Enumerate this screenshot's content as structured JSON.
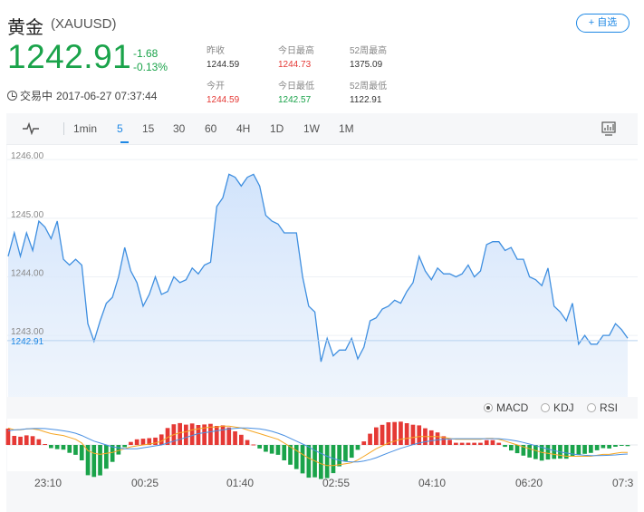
{
  "header": {
    "name": "黄金",
    "code": "(XAUUSD)",
    "watch_label": "+ 自选",
    "price": "1242.91",
    "change": "-1.68",
    "change_pct": "-0.13%",
    "status": "交易中",
    "datetime": "2017-06-27 07:37:44",
    "colors": {
      "up": "#e53935",
      "down": "#1aa34a",
      "accent": "#1e88e5"
    }
  },
  "stats": [
    {
      "label": "昨收",
      "value": "1244.59",
      "color": "black"
    },
    {
      "label": "今日最高",
      "value": "1244.73",
      "color": "red"
    },
    {
      "label": "52周最高",
      "value": "1375.09",
      "color": "black"
    },
    {
      "label": "今开",
      "value": "1244.59",
      "color": "red"
    },
    {
      "label": "今日最低",
      "value": "1242.57",
      "color": "green"
    },
    {
      "label": "52周最低",
      "value": "1122.91",
      "color": "black"
    }
  ],
  "toolbar": {
    "icons": {
      "chart_type": "pulse-icon",
      "display": "monitor-chart-icon"
    },
    "periods": [
      "1min",
      "5",
      "15",
      "30",
      "60",
      "4H",
      "1D",
      "1W",
      "1M"
    ],
    "active_period": "5"
  },
  "indicators": {
    "options": [
      "MACD",
      "KDJ",
      "RSI"
    ],
    "selected": "MACD"
  },
  "chart_data": {
    "type": "area",
    "title": "",
    "xlabel": "",
    "ylabel": "",
    "x_ticks": [
      "23:10",
      "00:25",
      "01:40",
      "02:55",
      "04:10",
      "06:20",
      "07:3"
    ],
    "y_ticks": [
      "1246.00",
      "1245.00",
      "1244.00",
      "1243.00"
    ],
    "ylim": [
      1241.95,
      1246.25
    ],
    "last_value_label": "1242.91",
    "series": [
      {
        "values": [
          1244.35,
          1244.75,
          1244.35,
          1244.75,
          1244.45,
          1244.95,
          1244.85,
          1244.65,
          1244.95,
          1244.3,
          1244.2,
          1244.3,
          1244.2,
          1243.2,
          1242.9,
          1243.25,
          1243.55,
          1243.65,
          1244.0,
          1244.5,
          1244.1,
          1243.9,
          1243.5,
          1243.7,
          1244.0,
          1243.7,
          1243.75,
          1244.0,
          1243.9,
          1243.95,
          1244.15,
          1244.05,
          1244.2,
          1244.25,
          1245.2,
          1245.35,
          1245.75,
          1245.7,
          1245.55,
          1245.7,
          1245.75,
          1245.55,
          1245.05,
          1244.95,
          1244.9,
          1244.75,
          1244.75,
          1244.75,
          1244.0,
          1243.5,
          1243.4,
          1242.55,
          1242.95,
          1242.65,
          1242.75,
          1242.75,
          1242.95,
          1242.6,
          1242.8,
          1243.25,
          1243.3,
          1243.45,
          1243.5,
          1243.6,
          1243.55,
          1243.75,
          1243.9,
          1244.35,
          1244.1,
          1243.95,
          1244.15,
          1244.05,
          1244.05,
          1244.0,
          1244.05,
          1244.2,
          1244.0,
          1244.1,
          1244.55,
          1244.6,
          1244.6,
          1244.45,
          1244.5,
          1244.3,
          1244.3,
          1244.0,
          1243.95,
          1243.85,
          1244.15,
          1243.5,
          1243.4,
          1243.25,
          1243.55,
          1242.85,
          1243.0,
          1242.85,
          1242.85,
          1243.0,
          1243.0,
          1243.2,
          1243.1,
          1242.95
        ]
      }
    ],
    "macd": {
      "dif": [
        0.9,
        0.8,
        0.8,
        0.85,
        0.85,
        0.8,
        0.7,
        0.6,
        0.55,
        0.5,
        0.4,
        0.3,
        0.1,
        -0.3,
        -0.45,
        -0.5,
        -0.45,
        -0.4,
        -0.3,
        -0.2,
        -0.1,
        -0.05,
        0.0,
        0.05,
        0.1,
        0.2,
        0.4,
        0.55,
        0.65,
        0.7,
        0.8,
        0.85,
        0.9,
        0.95,
        0.95,
        1.0,
        1.0,
        0.95,
        0.9,
        0.8,
        0.7,
        0.6,
        0.5,
        0.4,
        0.3,
        0.1,
        -0.1,
        -0.3,
        -0.5,
        -0.7,
        -0.85,
        -1.0,
        -1.1,
        -1.1,
        -1.05,
        -1.0,
        -0.95,
        -0.8,
        -0.6,
        -0.4,
        -0.2,
        -0.05,
        0.1,
        0.2,
        0.3,
        0.35,
        0.4,
        0.45,
        0.45,
        0.45,
        0.45,
        0.4,
        0.35,
        0.3,
        0.3,
        0.3,
        0.3,
        0.3,
        0.35,
        0.35,
        0.3,
        0.2,
        0.1,
        0.0,
        -0.1,
        -0.2,
        -0.3,
        -0.4,
        -0.45,
        -0.5,
        -0.55,
        -0.6,
        -0.6,
        -0.6,
        -0.6,
        -0.6,
        -0.55,
        -0.5,
        -0.5,
        -0.45,
        -0.4,
        -0.4
      ],
      "dea": [
        0.75,
        0.8,
        0.82,
        0.85,
        0.87,
        0.88,
        0.87,
        0.84,
        0.8,
        0.75,
        0.7,
        0.62,
        0.5,
        0.35,
        0.2,
        0.1,
        0.0,
        -0.1,
        -0.15,
        -0.2,
        -0.2,
        -0.2,
        -0.15,
        -0.1,
        -0.05,
        0.0,
        0.1,
        0.2,
        0.3,
        0.4,
        0.5,
        0.6,
        0.65,
        0.7,
        0.75,
        0.8,
        0.85,
        0.88,
        0.9,
        0.9,
        0.88,
        0.85,
        0.8,
        0.72,
        0.62,
        0.5,
        0.35,
        0.2,
        0.05,
        -0.1,
        -0.3,
        -0.45,
        -0.6,
        -0.72,
        -0.82,
        -0.88,
        -0.9,
        -0.9,
        -0.85,
        -0.78,
        -0.68,
        -0.55,
        -0.42,
        -0.3,
        -0.18,
        -0.08,
        0.02,
        0.1,
        0.17,
        0.22,
        0.27,
        0.3,
        0.32,
        0.33,
        0.33,
        0.33,
        0.33,
        0.33,
        0.33,
        0.33,
        0.33,
        0.3,
        0.26,
        0.2,
        0.13,
        0.05,
        -0.04,
        -0.13,
        -0.22,
        -0.3,
        -0.37,
        -0.43,
        -0.48,
        -0.52,
        -0.55,
        -0.57,
        -0.57,
        -0.56,
        -0.55,
        -0.53,
        -0.5,
        -0.48
      ],
      "ylim": [
        -1.3,
        1.3
      ]
    }
  }
}
